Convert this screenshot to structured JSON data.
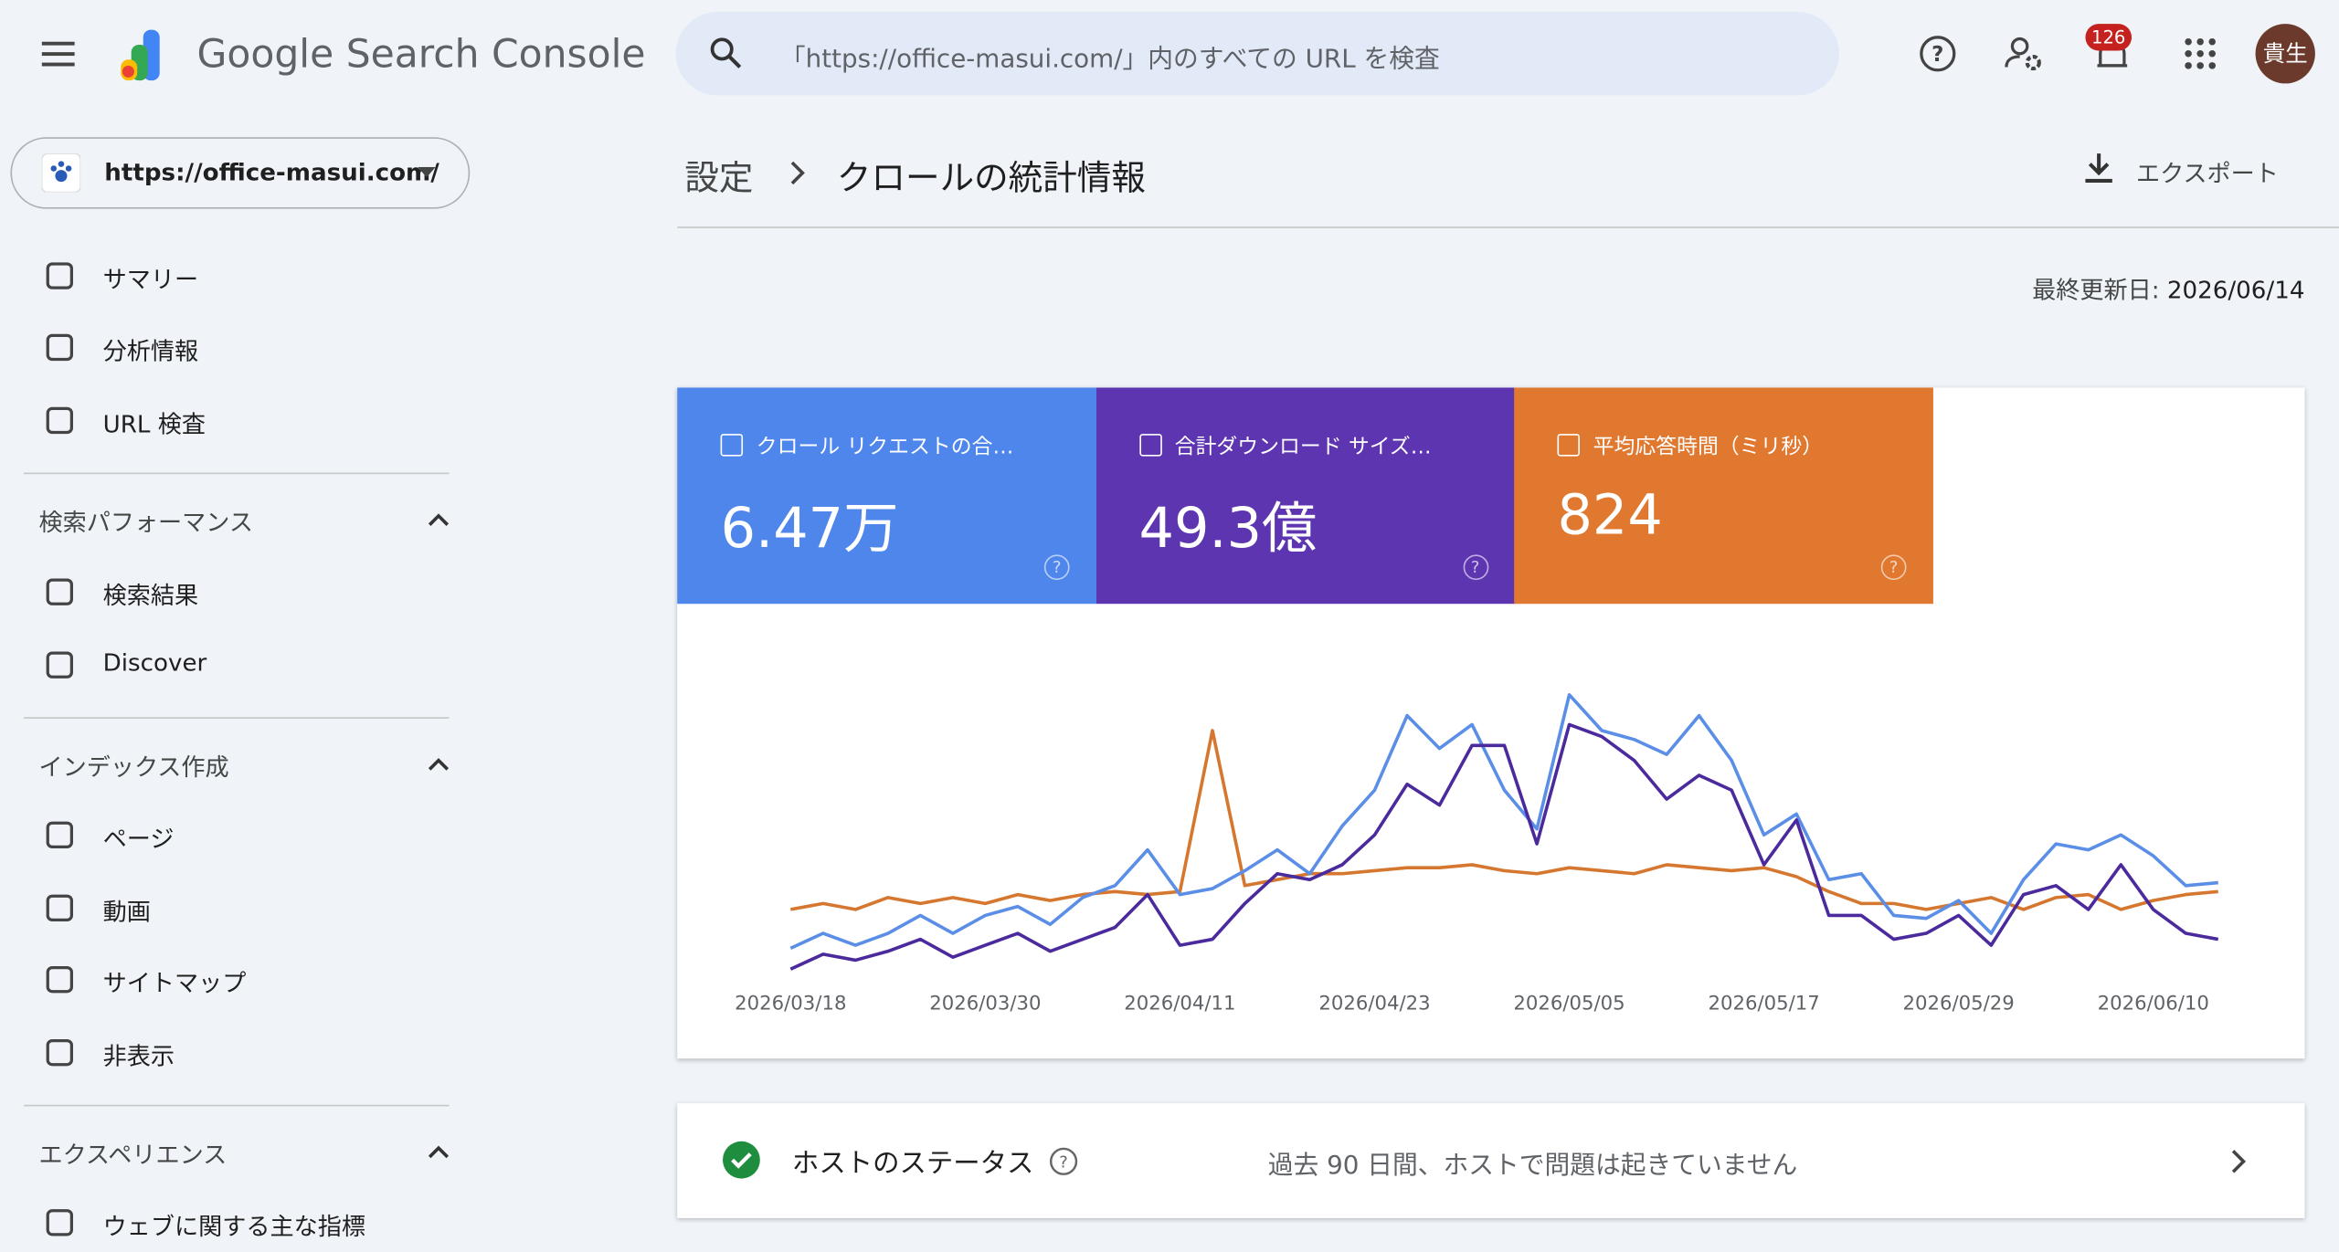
{
  "header": {
    "product": "Google Search Console",
    "search_placeholder": "「https://office-masui.com/」内のすべての URL を検査",
    "notifications": 126,
    "avatar": "貴生"
  },
  "property": "https://office-masui.com/",
  "nav": {
    "top": [
      "サマリー",
      "分析情報",
      "URL 検査"
    ],
    "sections": [
      {
        "title": "検索パフォーマンス",
        "items": [
          "検索結果",
          "Discover"
        ]
      },
      {
        "title": "インデックス作成",
        "items": [
          "ページ",
          "動画",
          "サイトマップ",
          "非表示"
        ]
      },
      {
        "title": "エクスペリエンス",
        "items": [
          "ウェブに関する主な指標"
        ]
      }
    ]
  },
  "breadcrumb": [
    "設定",
    "クロールの統計情報"
  ],
  "export": "エクスポート",
  "last_updated": {
    "label": "最終更新日:",
    "date": "2026/06/14"
  },
  "chart_data": {
    "type": "line",
    "categories": [
      "2026/03/18",
      null,
      null,
      null,
      null,
      null,
      "2026/03/30",
      null,
      null,
      null,
      null,
      null,
      "2026/04/11",
      null,
      null,
      null,
      null,
      null,
      "2026/04/23",
      null,
      null,
      null,
      null,
      null,
      "2026/05/05",
      null,
      null,
      null,
      null,
      null,
      "2026/05/17",
      null,
      null,
      null,
      null,
      null,
      "2026/05/29",
      null,
      null,
      null,
      null,
      null,
      "2026/06/10",
      null,
      null
    ],
    "ylim": [
      0,
      100
    ],
    "series": [
      {
        "name": "クロール リクエストの合…",
        "summary": "6.47万",
        "color": "#5b8ee6",
        "tile_color": "#4f86ec",
        "values": [
          7,
          12,
          8,
          12,
          18,
          12,
          18,
          21,
          15,
          24,
          28,
          40,
          25,
          27,
          33,
          40,
          32,
          48,
          60,
          85,
          74,
          82,
          60,
          47,
          92,
          80,
          77,
          72,
          85,
          70,
          45,
          52,
          30,
          32,
          18,
          17,
          23,
          12,
          30,
          42,
          40,
          45,
          38,
          28,
          29
        ]
      },
      {
        "name": "合計ダウンロード サイズ…",
        "summary": "49.3億",
        "color": "#4a2a9c",
        "tile_color": "#5e35b1",
        "values": [
          0,
          5,
          3,
          6,
          10,
          4,
          8,
          12,
          6,
          10,
          14,
          25,
          8,
          10,
          22,
          32,
          30,
          35,
          45,
          62,
          55,
          75,
          75,
          42,
          82,
          78,
          70,
          57,
          65,
          60,
          35,
          50,
          18,
          18,
          10,
          12,
          18,
          8,
          25,
          28,
          20,
          35,
          20,
          12,
          10
        ]
      },
      {
        "name": "平均応答時間（ミリ秒）",
        "summary": "824",
        "color": "#d5772f",
        "tile_color": "#e0782f",
        "values": [
          20,
          22,
          20,
          24,
          22,
          24,
          22,
          25,
          23,
          25,
          26,
          25,
          26,
          80,
          28,
          30,
          32,
          32,
          33,
          34,
          34,
          35,
          33,
          32,
          34,
          33,
          32,
          35,
          34,
          33,
          34,
          31,
          26,
          22,
          22,
          20,
          22,
          24,
          20,
          24,
          25,
          20,
          23,
          25,
          26
        ]
      }
    ]
  },
  "host_status": {
    "title": "ホストのステータス",
    "message": "過去 90 日間、ホストで問題は起きていません"
  }
}
